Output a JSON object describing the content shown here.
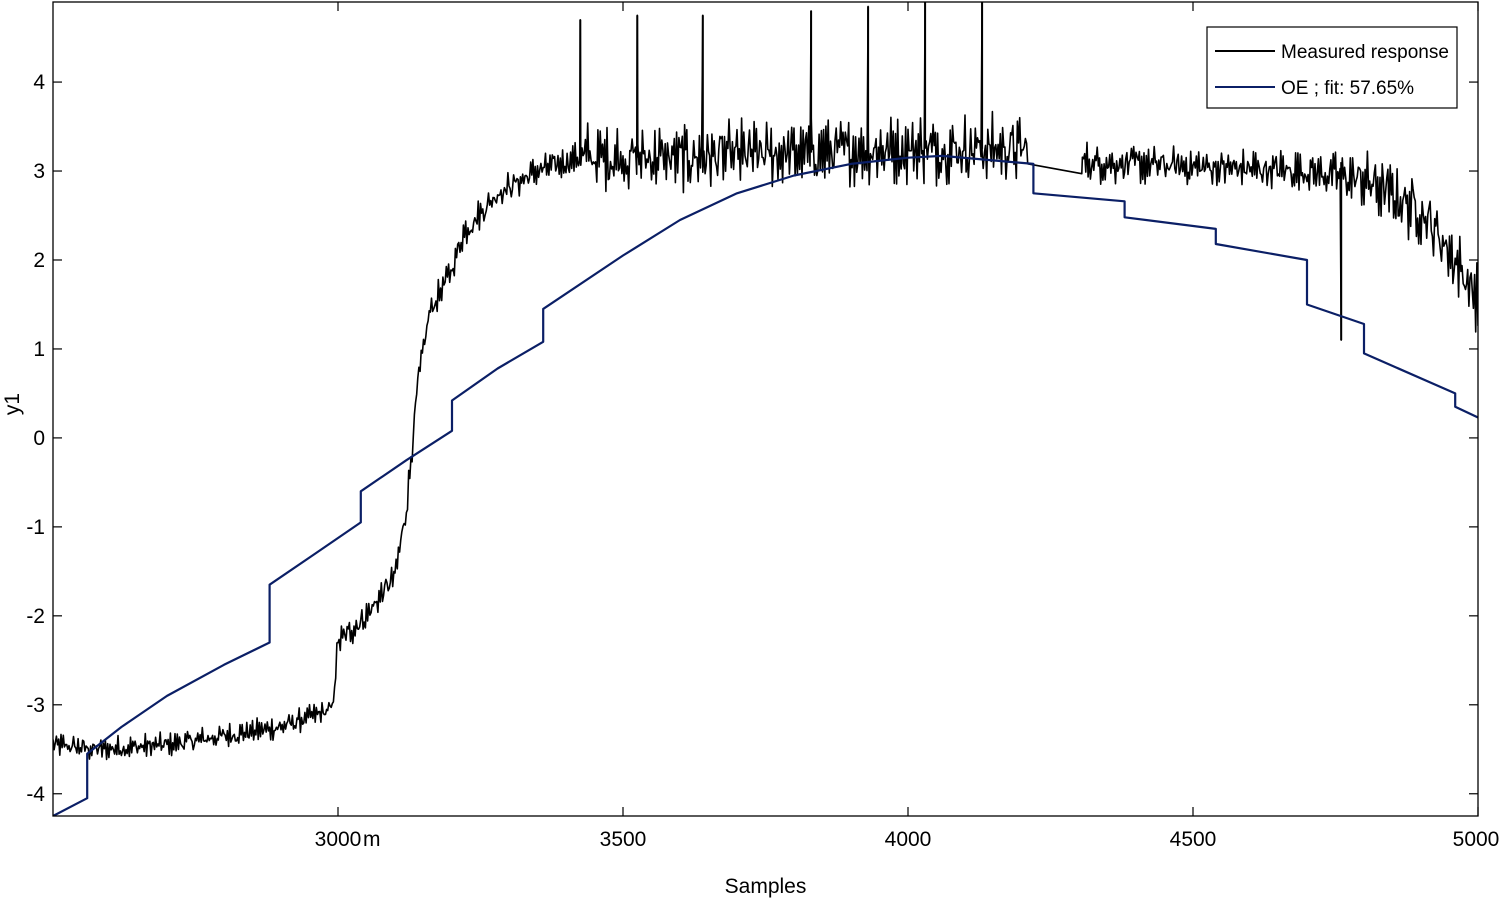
{
  "chart_data": {
    "type": "line",
    "xlabel": "Samples",
    "ylabel": "y1",
    "xlim": [
      2500,
      5000
    ],
    "ylim": [
      -4.25,
      4.9
    ],
    "xticks": [
      3000,
      3500,
      4000,
      4500,
      5000
    ],
    "xtick_labels": [
      "3000",
      "3500",
      "4000",
      "4500",
      "5000"
    ],
    "xtick_suffix": "m",
    "yticks": [
      -4,
      -3,
      -2,
      -1,
      0,
      1,
      2,
      3,
      4
    ],
    "ytick_labels": [
      "-4",
      "-3",
      "-2",
      "-1",
      "0",
      "1",
      "2",
      "3",
      "4"
    ],
    "grid": false,
    "legend_position": "top-right",
    "series": [
      {
        "name": "Measured response",
        "color": "#000000",
        "style": "noisy",
        "baseline": {
          "x": [
            2500,
            2580,
            2700,
            2800,
            2900,
            2990,
            3000,
            3050,
            3100,
            3120,
            3140,
            3160,
            3200,
            3220,
            3280,
            3350,
            3400,
            3420,
            3600,
            3800,
            4000,
            4150,
            4200
          ],
          "y": [
            -3.45,
            -3.5,
            -3.45,
            -3.35,
            -3.25,
            -3.05,
            -2.3,
            -2.0,
            -1.55,
            -0.8,
            0.6,
            1.4,
            1.9,
            2.3,
            2.75,
            3.0,
            3.1,
            3.15,
            3.15,
            3.2,
            3.25,
            3.25,
            3.25
          ]
        },
        "noise_envelope": {
          "x": [
            2500,
            2990,
            3000,
            3420,
            3430,
            4200,
            4300,
            4700,
            4800,
            4900,
            5000
          ],
          "amplitude": [
            0.12,
            0.12,
            0.15,
            0.15,
            0.35,
            0.35,
            0.2,
            0.2,
            0.3,
            0.35,
            0.35
          ]
        },
        "gap_segment": {
          "x": [
            4210,
            4305
          ],
          "y": [
            3.25,
            2.97
          ]
        },
        "after_gap_baseline": {
          "x": [
            4305,
            4500,
            4700,
            4800,
            4900,
            4950,
            5000
          ],
          "y": [
            3.1,
            3.05,
            3.0,
            2.9,
            2.55,
            2.1,
            1.55
          ]
        },
        "spikes": [
          {
            "x": 3425,
            "y": 4.7
          },
          {
            "x": 3525,
            "y": 4.75
          },
          {
            "x": 3640,
            "y": 4.75
          },
          {
            "x": 3830,
            "y": 4.8
          },
          {
            "x": 3930,
            "y": 4.85
          },
          {
            "x": 4030,
            "y": 4.9
          },
          {
            "x": 4130,
            "y": 4.9
          },
          {
            "x": 4760,
            "y": 1.1
          }
        ]
      },
      {
        "name": "OE ; fit: 57.65%",
        "color": "#0b1f66",
        "x": [
          2500,
          2560,
          2560,
          2620,
          2700,
          2800,
          2880,
          2880,
          2960,
          3040,
          3040,
          3120,
          3200,
          3200,
          3280,
          3360,
          3360,
          3500,
          3600,
          3700,
          3800,
          3900,
          4000,
          4060,
          4220,
          4220,
          4380,
          4380,
          4540,
          4540,
          4700,
          4700,
          4800,
          4800,
          4960,
          4960,
          5000
        ],
        "y": [
          -4.25,
          -4.05,
          -3.55,
          -3.25,
          -2.9,
          -2.55,
          -2.3,
          -1.65,
          -1.3,
          -0.95,
          -0.6,
          -0.25,
          0.08,
          0.42,
          0.78,
          1.08,
          1.45,
          2.05,
          2.45,
          2.75,
          2.95,
          3.08,
          3.15,
          3.17,
          3.08,
          2.75,
          2.66,
          2.48,
          2.35,
          2.18,
          2.0,
          1.5,
          1.28,
          0.95,
          0.5,
          0.35,
          0.23
        ]
      }
    ]
  }
}
